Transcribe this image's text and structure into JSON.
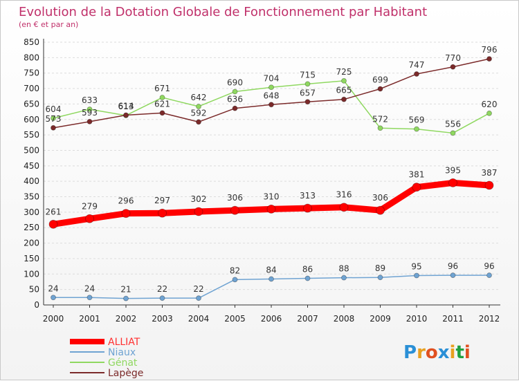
{
  "chart_data": {
    "type": "line",
    "title": "Evolution de la Dotation Globale de Fonctionnement par Habitant",
    "subtitle": "(en € et par an)",
    "x": [
      "2000",
      "2001",
      "2002",
      "2003",
      "2004",
      "2005",
      "2006",
      "2007",
      "2008",
      "2009",
      "2010",
      "2011",
      "2012"
    ],
    "ylim": [
      0,
      850
    ],
    "yticks": [
      0,
      50,
      100,
      150,
      200,
      250,
      300,
      350,
      400,
      450,
      500,
      550,
      600,
      650,
      700,
      750,
      800,
      850
    ],
    "grid": "horizontal",
    "legend_position": "bottom-left",
    "series": [
      {
        "name": "ALLIAT",
        "color": "#ff0000",
        "values": [
          261,
          279,
          296,
          297,
          302,
          306,
          310,
          313,
          316,
          306,
          381,
          395,
          387
        ]
      },
      {
        "name": "Niaux",
        "color": "#6fa3d2",
        "values": [
          24,
          24,
          21,
          22,
          22,
          82,
          84,
          86,
          88,
          89,
          95,
          96,
          96
        ]
      },
      {
        "name": "Génat",
        "color": "#8fd860",
        "values": [
          604,
          633,
          613,
          671,
          642,
          690,
          704,
          715,
          725,
          572,
          569,
          556,
          620
        ]
      },
      {
        "name": "Lapège",
        "color": "#7b2a2a",
        "values": [
          573,
          593,
          614,
          621,
          592,
          636,
          648,
          657,
          665,
          699,
          747,
          770,
          796
        ]
      }
    ]
  },
  "logo": {
    "letters": [
      "P",
      "r",
      "o",
      "x",
      "i",
      "t",
      "i"
    ],
    "colors": [
      "#2a8fd6",
      "#e8a020",
      "#e05020",
      "#2a8fd6",
      "#e8a020",
      "#20a040",
      "#e05020"
    ]
  }
}
